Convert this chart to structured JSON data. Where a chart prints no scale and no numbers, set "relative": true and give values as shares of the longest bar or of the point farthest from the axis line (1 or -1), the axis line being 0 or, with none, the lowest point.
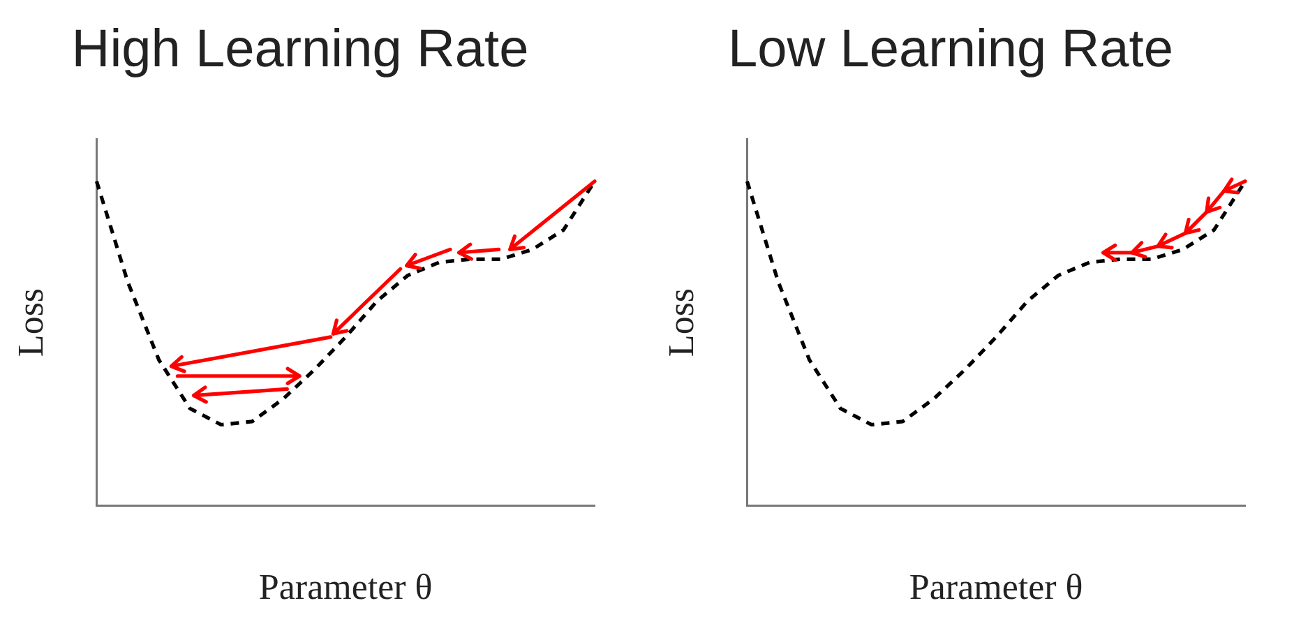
{
  "chart_data": [
    {
      "type": "line",
      "title": "High Learning Rate",
      "xlabel": "Parameter θ",
      "ylabel": "Loss",
      "relative": true,
      "categories": [
        null,
        null,
        null,
        null,
        null,
        null,
        null,
        null,
        null,
        null,
        null,
        null,
        null,
        null,
        null,
        null,
        null
      ],
      "series": [
        {
          "color": "#000000",
          "line_style": "dashed",
          "values": [
            1,
            0.69,
            0.45,
            0.3,
            0.25,
            0.26,
            0.33,
            0.42,
            0.52,
            0.63,
            0.71,
            0.75,
            0.76,
            0.76,
            0.79,
            0.85,
            1
          ]
        }
      ]
    },
    {
      "type": "line",
      "title": "Low Learning Rate",
      "xlabel": "Parameter θ",
      "ylabel": "Loss",
      "relative": true,
      "categories": [
        null,
        null,
        null,
        null,
        null,
        null,
        null,
        null,
        null,
        null,
        null,
        null,
        null,
        null,
        null,
        null,
        null
      ],
      "series": [
        {
          "color": "#000000",
          "line_style": "dashed",
          "values": [
            1,
            0.69,
            0.45,
            0.3,
            0.25,
            0.26,
            0.33,
            0.42,
            0.52,
            0.63,
            0.71,
            0.75,
            0.76,
            0.76,
            0.79,
            0.85,
            1
          ]
        }
      ]
    }
  ]
}
